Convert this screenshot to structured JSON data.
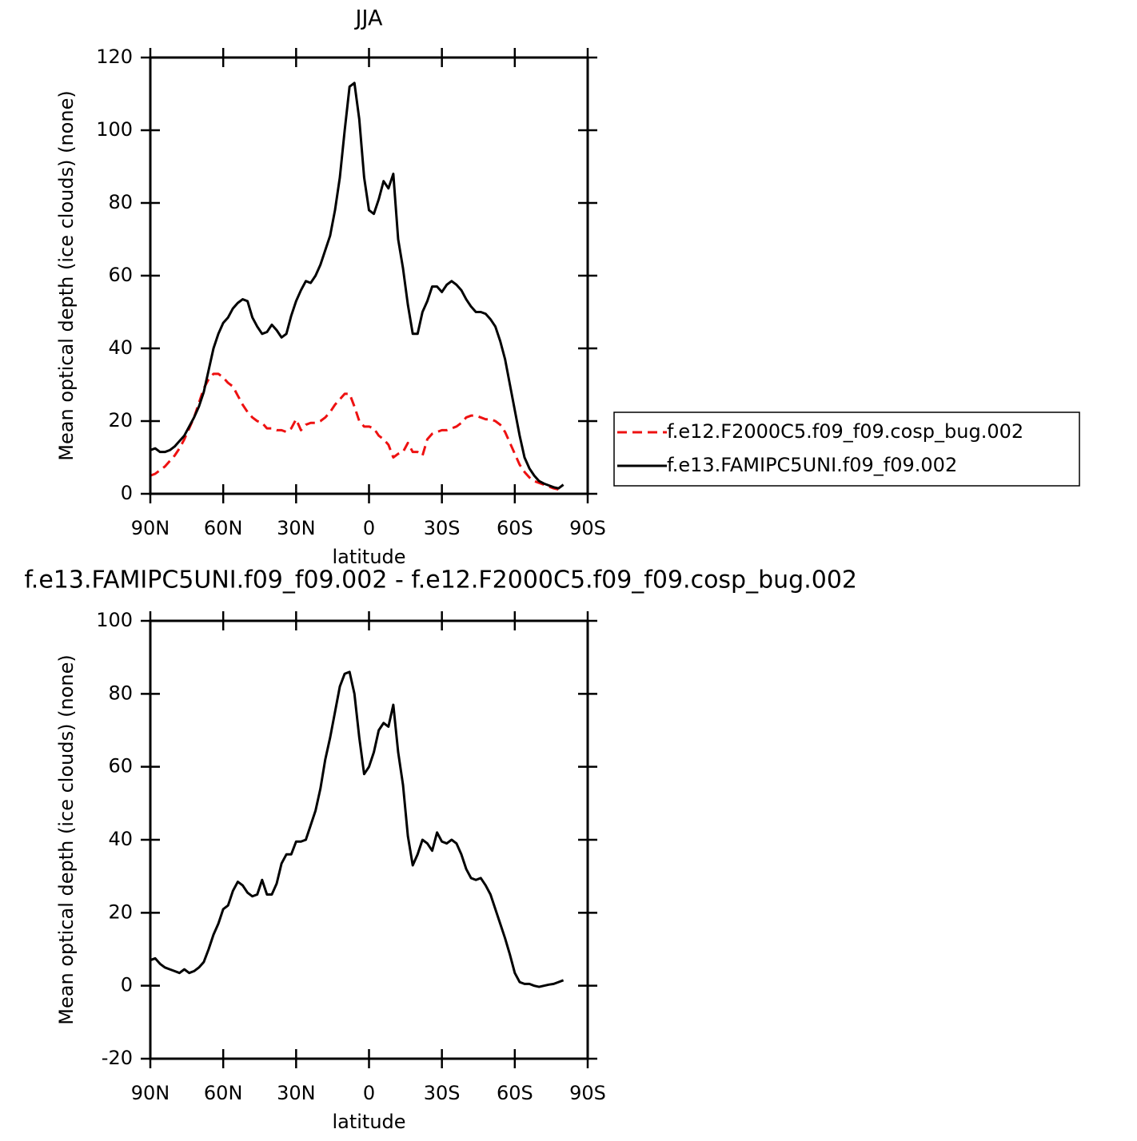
{
  "chart_data": [
    {
      "type": "line",
      "title": "JJA",
      "xlabel": "latitude",
      "ylabel": "Mean optical depth (ice clouds) (none)",
      "x": [
        90,
        88,
        86,
        84,
        82,
        80,
        78,
        76,
        74,
        72,
        70,
        68,
        66,
        64,
        62,
        60,
        58,
        56,
        54,
        52,
        50,
        48,
        46,
        44,
        42,
        40,
        38,
        36,
        34,
        32,
        30,
        28,
        26,
        24,
        22,
        20,
        18,
        16,
        14,
        12,
        10,
        8,
        6,
        4,
        2,
        0,
        -2,
        -4,
        -6,
        -8,
        -10,
        -12,
        -14,
        -16,
        -18,
        -20,
        -22,
        -24,
        -26,
        -28,
        -30,
        -32,
        -34,
        -36,
        -38,
        -40,
        -42,
        -44,
        -46,
        -48,
        -50,
        -52,
        -54,
        -56,
        -58,
        -60,
        -62,
        -64,
        -66,
        -68,
        -70,
        -72,
        -74,
        -76,
        -78,
        -80
      ],
      "series": [
        {
          "name": "f.e12.F2000C5.f09_f09.cosp_bug.002",
          "color": "#ee1111",
          "dash": "dashed",
          "values": [
            5,
            5.5,
            6.5,
            7.5,
            9,
            10.5,
            12.5,
            15,
            18,
            21,
            25,
            29,
            31.5,
            33,
            33,
            32,
            30.5,
            29.5,
            27,
            24.5,
            22.5,
            21,
            20,
            19.5,
            18,
            18,
            17.5,
            17.5,
            17,
            18,
            20.5,
            17.5,
            19,
            19.5,
            19.5,
            20,
            21,
            22.5,
            24.5,
            26,
            27.5,
            27.5,
            24,
            20,
            18.5,
            18.5,
            18,
            16,
            15,
            13.5,
            10,
            11,
            11.5,
            14,
            11.5,
            11.5,
            10.5,
            15,
            16.5,
            17,
            17.5,
            17.5,
            18,
            18.5,
            19.5,
            21,
            21.5,
            21.5,
            21,
            20.5,
            20.5,
            20,
            19,
            17,
            14,
            11,
            8,
            6,
            4.5,
            3.5,
            3,
            2.5,
            2,
            1.5,
            1.2,
            1
          ]
        },
        {
          "name": "f.e13.FAMIPC5UNI.f09_f09.002",
          "color": "#000000",
          "dash": "solid",
          "values": [
            12,
            12.5,
            11.5,
            11.5,
            12,
            13,
            14.5,
            16,
            18.5,
            21,
            24,
            28,
            34,
            40,
            44,
            47,
            48.5,
            51,
            52.5,
            53.5,
            53,
            48.5,
            46,
            44,
            44.5,
            46.5,
            45,
            43,
            44,
            49,
            53,
            56,
            58.5,
            58,
            60,
            63,
            67,
            71,
            78,
            87,
            100,
            112,
            113,
            103,
            87,
            78,
            77,
            81,
            86,
            84,
            88,
            70,
            62,
            52,
            44,
            44,
            50,
            53,
            57,
            57,
            55.5,
            57.5,
            58.5,
            57.5,
            56,
            53.5,
            51.5,
            50,
            50,
            49.5,
            48,
            46,
            42,
            37,
            30,
            23,
            16,
            10,
            7,
            5,
            3.5,
            2.8,
            2.3,
            1.8,
            1.5,
            2.5
          ]
        }
      ],
      "xlim": [
        90,
        -90
      ],
      "xticks": [
        {
          "value": 90,
          "label": "90N"
        },
        {
          "value": 60,
          "label": "60N"
        },
        {
          "value": 30,
          "label": "30N"
        },
        0,
        {
          "value": -30,
          "label": "30S"
        },
        {
          "value": -60,
          "label": "60S"
        },
        {
          "value": -90,
          "label": "90S"
        }
      ],
      "ylim": [
        0,
        120
      ],
      "yticks": [
        0,
        20,
        40,
        60,
        80,
        100,
        120
      ],
      "legend": "right"
    },
    {
      "type": "line",
      "title": "f.e13.FAMIPC5UNI.f09_f09.002 - f.e12.F2000C5.f09_f09.cosp_bug.002",
      "xlabel": "latitude",
      "ylabel": "Mean optical depth (ice clouds) (none)",
      "x": [
        90,
        88,
        86,
        84,
        82,
        80,
        78,
        76,
        74,
        72,
        70,
        68,
        66,
        64,
        62,
        60,
        58,
        56,
        54,
        52,
        50,
        48,
        46,
        44,
        42,
        40,
        38,
        36,
        34,
        32,
        30,
        28,
        26,
        24,
        22,
        20,
        18,
        16,
        14,
        12,
        10,
        8,
        6,
        4,
        2,
        0,
        -2,
        -4,
        -6,
        -8,
        -10,
        -12,
        -14,
        -16,
        -18,
        -20,
        -22,
        -24,
        -26,
        -28,
        -30,
        -32,
        -34,
        -36,
        -38,
        -40,
        -42,
        -44,
        -46,
        -48,
        -50,
        -52,
        -54,
        -56,
        -58,
        -60,
        -62,
        -64,
        -66,
        -68,
        -70,
        -72,
        -74,
        -76,
        -78,
        -80
      ],
      "series": [
        {
          "color": "#000000",
          "dash": "solid",
          "values": [
            7,
            7.5,
            6,
            5,
            4.5,
            4,
            3.5,
            4.5,
            3.5,
            4,
            5,
            6.5,
            10,
            14,
            17,
            21,
            22,
            26,
            28.5,
            27.5,
            25.5,
            24.5,
            25,
            29,
            25,
            25,
            28,
            33.5,
            36,
            36,
            39.5,
            39.5,
            40,
            44,
            48,
            54,
            62,
            68,
            75,
            82,
            85.5,
            86,
            80,
            68,
            58,
            60,
            64,
            70,
            72,
            71,
            77,
            64,
            55,
            41,
            33,
            36,
            40,
            39,
            37,
            42,
            39.5,
            39,
            40,
            39,
            36,
            32,
            29.5,
            29,
            29.5,
            27.5,
            25,
            21,
            17,
            13,
            8.5,
            3.5,
            1,
            0.5,
            0.5,
            0,
            -0.3,
            0,
            0.3,
            0.5,
            1,
            1.5
          ]
        }
      ],
      "xlim": [
        90,
        -90
      ],
      "xticks": [
        {
          "value": 90,
          "label": "90N"
        },
        {
          "value": 60,
          "label": "60N"
        },
        {
          "value": 30,
          "label": "30N"
        },
        0,
        {
          "value": -30,
          "label": "30S"
        },
        {
          "value": -60,
          "label": "60S"
        },
        {
          "value": -90,
          "label": "90S"
        }
      ],
      "ylim": [
        -20,
        100
      ],
      "yticks": [
        -20,
        0,
        20,
        40,
        60,
        80,
        100
      ]
    }
  ]
}
